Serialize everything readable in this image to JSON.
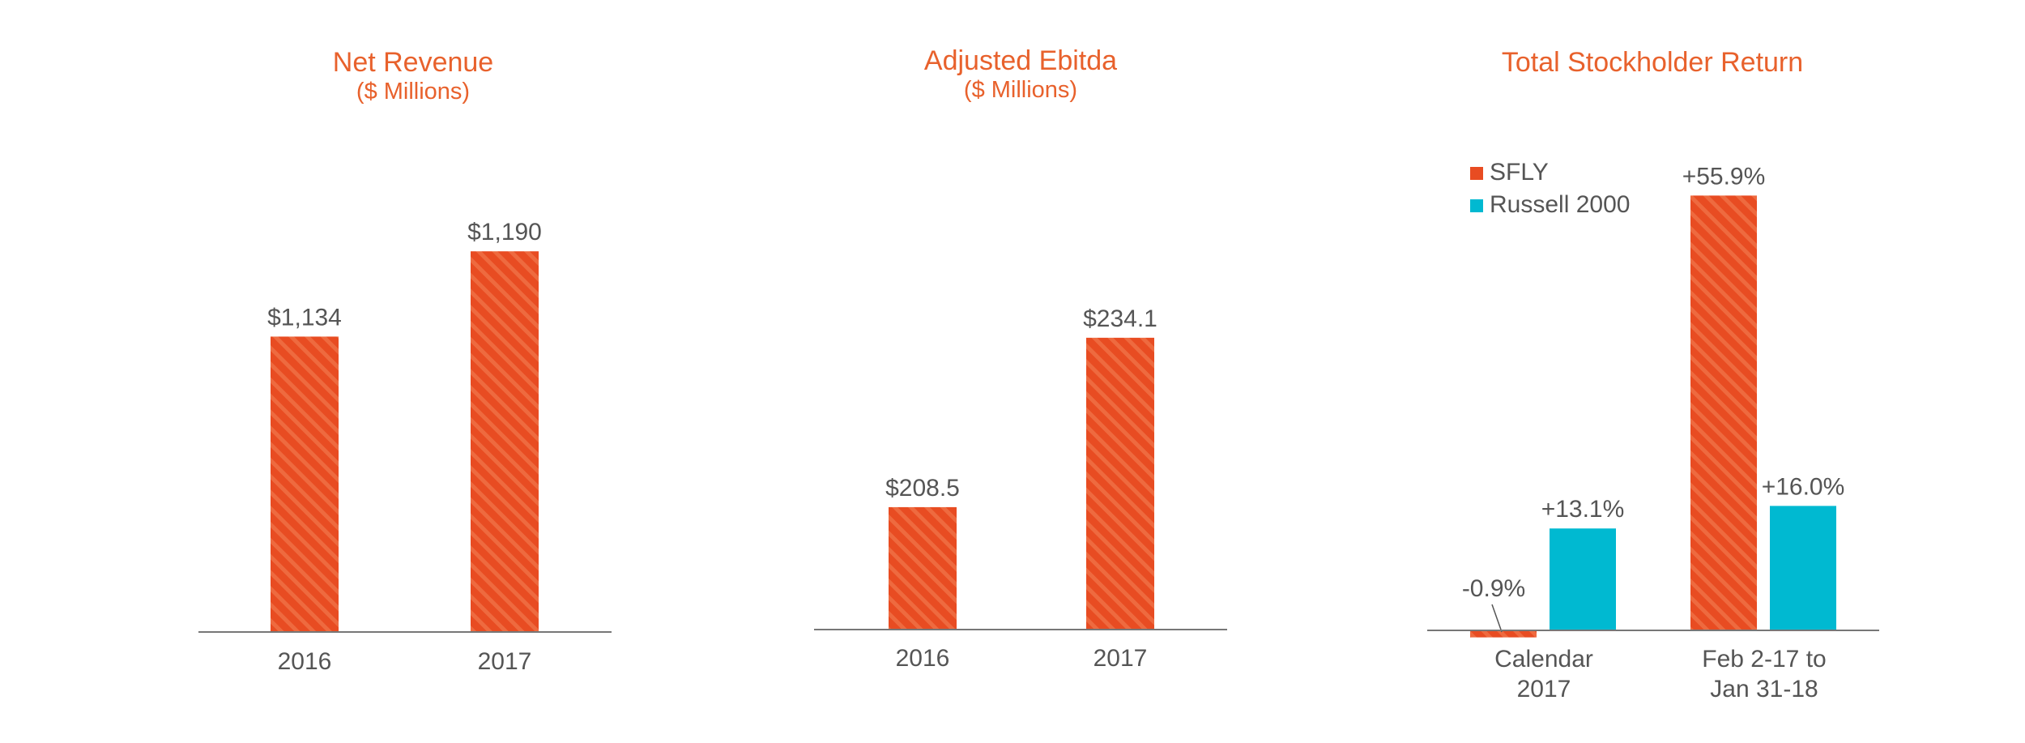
{
  "colors": {
    "accent": "#e8612c",
    "sfly": "#e84c22",
    "russell": "#00b9d1",
    "text": "#555555",
    "axis": "#777777"
  },
  "chart_data": [
    {
      "type": "bar",
      "title": "Net Revenue",
      "subtitle": "($ Millions)",
      "categories": [
        "2016",
        "2017"
      ],
      "values": [
        1134,
        1190
      ],
      "value_labels": [
        "$1,134",
        "$1,190"
      ],
      "ylim": [
        940,
        1230
      ],
      "grid": false
    },
    {
      "type": "bar",
      "title": "Adjusted Ebitda",
      "subtitle": "($ Millions)",
      "categories": [
        "2016",
        "2017"
      ],
      "values": [
        208.5,
        234.1
      ],
      "value_labels": [
        "$208.5",
        "$234.1"
      ],
      "ylim": [
        190,
        250
      ],
      "grid": false
    },
    {
      "type": "bar",
      "title": "Total Stockholder Return",
      "categories": [
        [
          "Calendar",
          "2017"
        ],
        [
          "Feb 2-17 to",
          "Jan 31-18"
        ]
      ],
      "series": [
        {
          "name": "SFLY",
          "values": [
            -0.9,
            55.9
          ],
          "labels": [
            "-0.9%",
            "+55.9%"
          ]
        },
        {
          "name": "Russell 2000",
          "values": [
            13.1,
            16.0
          ],
          "labels": [
            "+13.1%",
            "+16.0%"
          ]
        }
      ],
      "legend_position": "top-left",
      "ylim": [
        -5,
        60
      ],
      "grid": false
    }
  ]
}
